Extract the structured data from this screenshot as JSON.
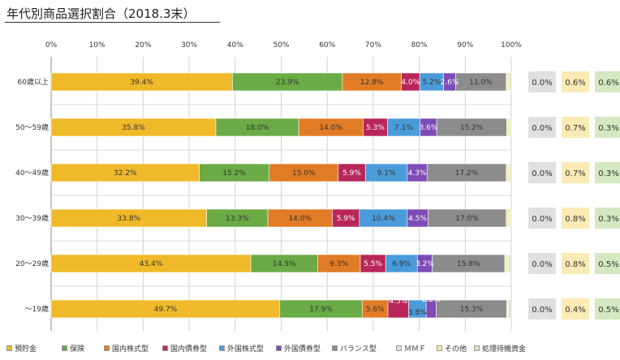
{
  "title": "年代別商品選択割合（2018.3末）",
  "chart_data": {
    "type": "bar",
    "orientation": "horizontal",
    "stacked": true,
    "xlim": [
      0,
      100
    ],
    "x_ticks": [
      "0%",
      "10%",
      "20%",
      "30%",
      "40%",
      "50%",
      "60%",
      "70%",
      "80%",
      "90%",
      "100%"
    ],
    "categories": [
      "60歳以上",
      "50～59歳",
      "40～49歳",
      "30～39歳",
      "20～29歳",
      "～19歳"
    ],
    "series": [
      {
        "name": "預貯金",
        "color": "#F0B929",
        "values": [
          39.4,
          35.8,
          32.2,
          33.8,
          43.4,
          49.7
        ]
      },
      {
        "name": "保険",
        "color": "#6AAB45",
        "values": [
          23.9,
          18.0,
          15.2,
          13.3,
          14.5,
          17.9
        ]
      },
      {
        "name": "国内株式型",
        "color": "#E17B25",
        "values": [
          12.8,
          14.0,
          15.0,
          14.0,
          9.3,
          5.6
        ]
      },
      {
        "name": "国内債券型",
        "color": "#B8265A",
        "values": [
          4.0,
          5.3,
          5.9,
          5.9,
          5.5,
          4.5
        ]
      },
      {
        "name": "外国株式型",
        "color": "#4A9BD9",
        "values": [
          5.2,
          7.1,
          9.1,
          10.4,
          6.9,
          3.8
        ]
      },
      {
        "name": "外国債券型",
        "color": "#7E4BB7",
        "values": [
          2.6,
          3.6,
          4.3,
          4.5,
          3.2,
          2.2
        ]
      },
      {
        "name": "バランス型",
        "color": "#8C8C8C",
        "values": [
          11.0,
          15.2,
          17.2,
          17.0,
          15.8,
          15.3
        ]
      },
      {
        "name": "ＭＭＦ",
        "color": "#E0E0E0",
        "values": [
          0.0,
          0.0,
          0.0,
          0.0,
          0.0,
          0.0
        ]
      },
      {
        "name": "その他",
        "color": "#FAEBB5",
        "values": [
          0.6,
          0.7,
          0.7,
          0.8,
          0.8,
          0.4
        ]
      },
      {
        "name": "処理待機資金",
        "color": "#D4E8C1",
        "values": [
          0.6,
          0.3,
          0.3,
          0.3,
          0.5,
          0.5
        ]
      }
    ],
    "label_text_colors": [
      "#333333",
      "#333333",
      "#333333",
      "#ffffff",
      "#333333",
      "#ffffff",
      "#333333"
    ],
    "grid": true,
    "legend": "bottom"
  }
}
